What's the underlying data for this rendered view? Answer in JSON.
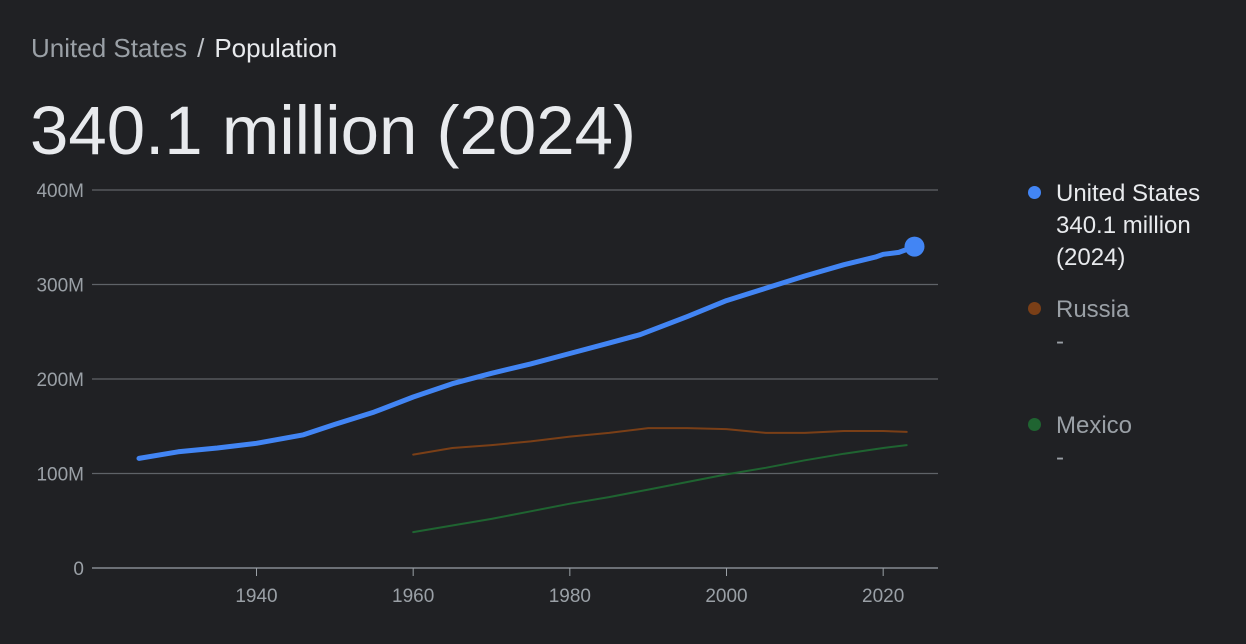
{
  "breadcrumb": {
    "parent": "United States",
    "separator": "/",
    "current": "Population"
  },
  "headline": "340.1 million (2024)",
  "legend": [
    {
      "name": "United States",
      "value": "340.1 million (2024)",
      "color": "#4285f4",
      "active": true
    },
    {
      "name": "Russia",
      "value": "-",
      "color": "#7a3f17",
      "active": false
    },
    {
      "name": "Mexico",
      "value": "-",
      "color": "#1f6431",
      "active": false
    }
  ],
  "chart_data": {
    "type": "line",
    "title": "",
    "xlabel": "",
    "ylabel": "",
    "xlim": [
      1919,
      2027
    ],
    "ylim": [
      0,
      400
    ],
    "y_unit": "million",
    "x_ticks": [
      1940,
      1960,
      1980,
      2000,
      2020
    ],
    "y_ticks": [
      0,
      100,
      200,
      300,
      400
    ],
    "y_tick_labels": [
      "0",
      "100M",
      "200M",
      "300M",
      "400M"
    ],
    "grid": true,
    "legend_position": "right",
    "series": [
      {
        "name": "United States",
        "color": "#4285f4",
        "highlight_last": true,
        "points": [
          [
            1925,
            116
          ],
          [
            1930,
            123
          ],
          [
            1935,
            127
          ],
          [
            1940,
            132
          ],
          [
            1946,
            141
          ],
          [
            1950,
            152
          ],
          [
            1955,
            165
          ],
          [
            1960,
            181
          ],
          [
            1965,
            195
          ],
          [
            1970,
            206
          ],
          [
            1975,
            216
          ],
          [
            1980,
            227
          ],
          [
            1985,
            238
          ],
          [
            1989,
            247
          ],
          [
            1995,
            266
          ],
          [
            2000,
            283
          ],
          [
            2005,
            296
          ],
          [
            2010,
            309
          ],
          [
            2015,
            321
          ],
          [
            2019,
            329
          ],
          [
            2020,
            332
          ],
          [
            2022,
            334
          ],
          [
            2024,
            340.1
          ]
        ]
      },
      {
        "name": "Russia",
        "color": "#7a3f17",
        "highlight_last": false,
        "points": [
          [
            1960,
            120
          ],
          [
            1965,
            127
          ],
          [
            1970,
            130
          ],
          [
            1975,
            134
          ],
          [
            1980,
            139
          ],
          [
            1985,
            143
          ],
          [
            1990,
            148
          ],
          [
            1995,
            148
          ],
          [
            2000,
            147
          ],
          [
            2005,
            143
          ],
          [
            2010,
            143
          ],
          [
            2015,
            145
          ],
          [
            2020,
            145
          ],
          [
            2023,
            144
          ]
        ]
      },
      {
        "name": "Mexico",
        "color": "#1f6431",
        "highlight_last": false,
        "points": [
          [
            1960,
            38
          ],
          [
            1965,
            45
          ],
          [
            1970,
            52
          ],
          [
            1975,
            60
          ],
          [
            1980,
            68
          ],
          [
            1985,
            75
          ],
          [
            1990,
            83
          ],
          [
            1995,
            91
          ],
          [
            2000,
            99
          ],
          [
            2005,
            106
          ],
          [
            2010,
            114
          ],
          [
            2015,
            121
          ],
          [
            2020,
            127
          ],
          [
            2023,
            130
          ]
        ]
      }
    ]
  }
}
